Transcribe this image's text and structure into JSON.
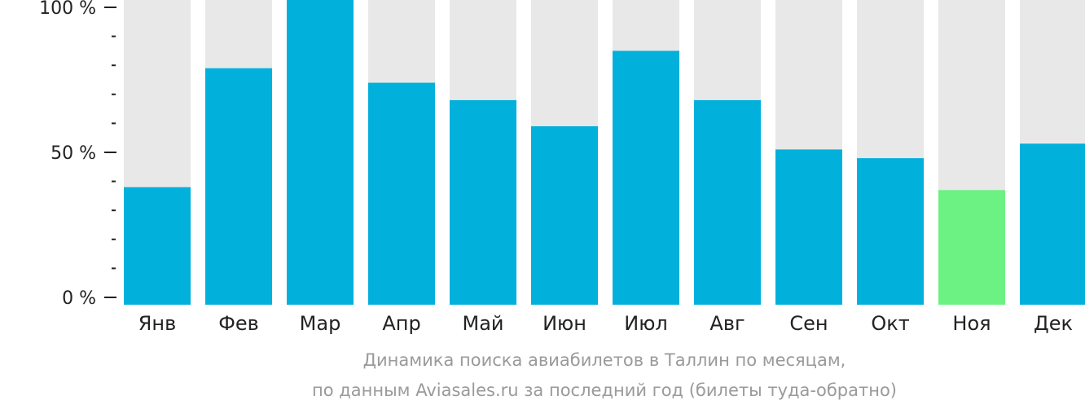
{
  "chart_data": {
    "type": "bar",
    "categories": [
      "Янв",
      "Фев",
      "Мар",
      "Апр",
      "Май",
      "Июн",
      "Июл",
      "Авг",
      "Сен",
      "Окт",
      "Ноя",
      "Дек"
    ],
    "values": [
      38,
      79,
      104,
      74,
      68,
      59,
      85,
      68,
      51,
      48,
      37,
      53
    ],
    "highlight_index": 10,
    "ylim": [
      0,
      100
    ],
    "yticks": [
      {
        "value": 0,
        "label": "0 %"
      },
      {
        "value": 50,
        "label": "50 %"
      },
      {
        "value": 100,
        "label": "100 %"
      }
    ],
    "minor_tick_step": 10,
    "colors": {
      "bar": "#02b0dc",
      "highlight": "#6cf183",
      "background_bar": "#e8e8e8",
      "axis": "#222222"
    },
    "caption_line1": "Динамика поиска авиабилетов в Таллин по месяцам,",
    "caption_line2": "по данным Aviasales.ru за последний год (билеты туда-обратно)"
  }
}
